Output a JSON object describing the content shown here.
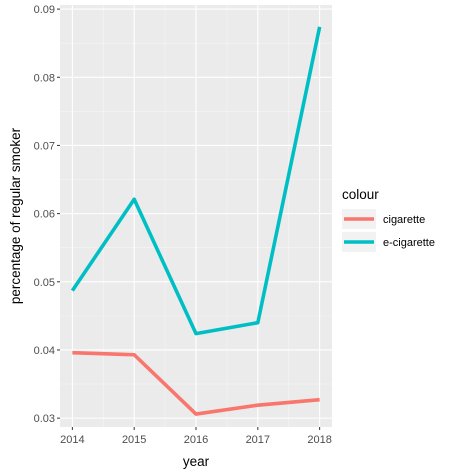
{
  "chart_data": {
    "type": "line",
    "xlabel": "year",
    "ylabel": "percentage of regular smoker",
    "x": [
      2014,
      2015,
      2016,
      2017,
      2018
    ],
    "x_ticks": [
      "2014",
      "2015",
      "2016",
      "2017",
      "2018"
    ],
    "xlim": [
      2013.8,
      2018.2
    ],
    "ylim": [
      0.0287,
      0.0906
    ],
    "y_ticks": [
      "0.03",
      "0.04",
      "0.05",
      "0.06",
      "0.07",
      "0.08",
      "0.09"
    ],
    "grid": true,
    "legend": {
      "title": "colour",
      "position": "right"
    },
    "series": [
      {
        "name": "cigarette",
        "color": "#F8766D",
        "values": [
          0.0396,
          0.0393,
          0.0306,
          0.0319,
          0.0327
        ]
      },
      {
        "name": "e-cigarette",
        "color": "#00BFC4",
        "values": [
          0.0487,
          0.0621,
          0.0424,
          0.044,
          0.0874
        ]
      }
    ]
  }
}
